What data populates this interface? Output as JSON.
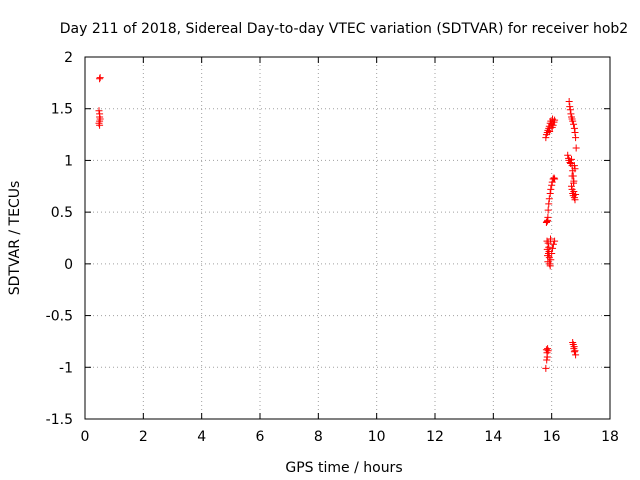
{
  "chart_data": {
    "type": "scatter",
    "title": "Day 211 of 2018, Sidereal Day-to-day VTEC variation (SDTVAR) for receiver hob2",
    "xlabel": "GPS time / hours",
    "ylabel": "SDTVAR / TECUs",
    "xlim": [
      0,
      18
    ],
    "ylim": [
      -1.5,
      2
    ],
    "grid": true,
    "legend": "none",
    "marker": "plus",
    "color": "#ff0000",
    "xticks": [
      {
        "value": 0,
        "label": "0"
      },
      {
        "value": 2,
        "label": "2"
      },
      {
        "value": 4,
        "label": "4"
      },
      {
        "value": 6,
        "label": "6"
      },
      {
        "value": 8,
        "label": "8"
      },
      {
        "value": 10,
        "label": "10"
      },
      {
        "value": 12,
        "label": "12"
      },
      {
        "value": 14,
        "label": "14"
      },
      {
        "value": 16,
        "label": "16"
      },
      {
        "value": 18,
        "label": "18"
      }
    ],
    "yticks": [
      {
        "value": -1.5,
        "label": "-1.5"
      },
      {
        "value": -1,
        "label": "-1"
      },
      {
        "value": -0.5,
        "label": "-0.5"
      },
      {
        "value": 0,
        "label": "0"
      },
      {
        "value": 0.5,
        "label": "0.5"
      },
      {
        "value": 1,
        "label": "1"
      },
      {
        "value": 1.5,
        "label": "1.5"
      },
      {
        "value": 2,
        "label": "2"
      }
    ],
    "points": [
      [
        0.5,
        1.79
      ],
      [
        0.52,
        1.8
      ],
      [
        0.48,
        1.48
      ],
      [
        0.5,
        1.45
      ],
      [
        0.5,
        1.42
      ],
      [
        0.52,
        1.4
      ],
      [
        0.5,
        1.38
      ],
      [
        0.48,
        1.36
      ],
      [
        0.5,
        1.34
      ],
      [
        15.8,
        1.22
      ],
      [
        15.82,
        1.25
      ],
      [
        15.85,
        1.27
      ],
      [
        15.87,
        1.29
      ],
      [
        15.9,
        1.31
      ],
      [
        15.92,
        1.33
      ],
      [
        15.95,
        1.36
      ],
      [
        15.97,
        1.38
      ],
      [
        16.0,
        1.35
      ],
      [
        16.02,
        1.32
      ],
      [
        16.05,
        1.34
      ],
      [
        16.08,
        1.37
      ],
      [
        16.1,
        1.39
      ],
      [
        15.93,
        1.28
      ],
      [
        16.03,
        1.4
      ],
      [
        15.82,
        0.4
      ],
      [
        15.84,
        0.41
      ],
      [
        15.86,
        0.42
      ],
      [
        15.88,
        0.52
      ],
      [
        15.9,
        0.58
      ],
      [
        15.92,
        0.63
      ],
      [
        15.95,
        0.68
      ],
      [
        15.97,
        0.72
      ],
      [
        16.0,
        0.76
      ],
      [
        16.02,
        0.79
      ],
      [
        16.05,
        0.82
      ],
      [
        16.08,
        0.83
      ],
      [
        16.1,
        0.82
      ],
      [
        15.87,
        0.45
      ],
      [
        15.84,
        0.22
      ],
      [
        15.85,
        0.14
      ],
      [
        15.86,
        0.08
      ],
      [
        15.87,
        0.02
      ],
      [
        15.88,
        0.2
      ],
      [
        15.9,
        0.16
      ],
      [
        15.91,
        0.12
      ],
      [
        15.92,
        0.06
      ],
      [
        15.93,
        0.0
      ],
      [
        15.95,
        -0.02
      ],
      [
        15.97,
        0.04
      ],
      [
        16.0,
        0.1
      ],
      [
        16.03,
        0.15
      ],
      [
        16.06,
        0.19
      ],
      [
        16.1,
        0.22
      ],
      [
        15.96,
        0.24
      ],
      [
        15.89,
        0.1
      ],
      [
        15.82,
        -0.83
      ],
      [
        15.84,
        -0.86
      ],
      [
        15.86,
        -0.82
      ],
      [
        15.88,
        -0.84
      ],
      [
        15.85,
        -0.9
      ],
      [
        15.83,
        -0.93
      ],
      [
        15.8,
        -1.01
      ],
      [
        16.6,
        1.57
      ],
      [
        16.62,
        1.52
      ],
      [
        16.64,
        1.49
      ],
      [
        16.66,
        1.45
      ],
      [
        16.68,
        1.42
      ],
      [
        16.7,
        1.4
      ],
      [
        16.72,
        1.38
      ],
      [
        16.75,
        1.35
      ],
      [
        16.78,
        1.31
      ],
      [
        16.8,
        1.27
      ],
      [
        16.82,
        1.22
      ],
      [
        16.84,
        1.12
      ],
      [
        16.55,
        1.05
      ],
      [
        16.58,
        1.02
      ],
      [
        16.6,
        1.0
      ],
      [
        16.63,
        0.98
      ],
      [
        16.65,
        0.97
      ],
      [
        16.68,
        1.01
      ],
      [
        16.7,
        0.95
      ],
      [
        16.72,
        0.9
      ],
      [
        16.74,
        0.85
      ],
      [
        16.76,
        0.8
      ],
      [
        16.78,
        0.95
      ],
      [
        16.8,
        0.92
      ],
      [
        16.68,
        0.75
      ],
      [
        16.7,
        0.72
      ],
      [
        16.72,
        0.68
      ],
      [
        16.74,
        0.66
      ],
      [
        16.76,
        0.7
      ],
      [
        16.78,
        0.64
      ],
      [
        16.8,
        0.62
      ],
      [
        16.82,
        0.67
      ],
      [
        16.7,
        0.85
      ],
      [
        16.75,
        0.78
      ],
      [
        16.72,
        -0.76
      ],
      [
        16.74,
        -0.78
      ],
      [
        16.76,
        -0.82
      ],
      [
        16.78,
        -0.85
      ],
      [
        16.8,
        -0.84
      ],
      [
        16.82,
        -0.88
      ],
      [
        16.77,
        -0.8
      ]
    ]
  }
}
